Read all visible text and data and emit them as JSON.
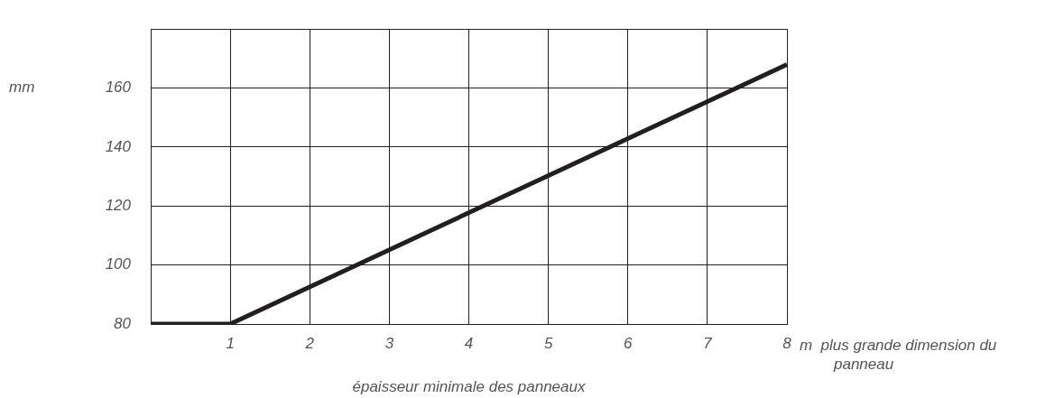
{
  "chart_data": {
    "type": "line",
    "title": "épaisseur minimale des panneaux",
    "xlabel": "m  plus grande dimension du panneau",
    "ylabel": "mm",
    "series": [
      {
        "color": "#231f20",
        "x": [
          0,
          1,
          8
        ],
        "values": [
          80,
          80,
          168
        ]
      }
    ],
    "xlim": [
      0,
      8
    ],
    "xticks": [
      {
        "value": 0,
        "label": null
      },
      1,
      2,
      3,
      4,
      5,
      6,
      7,
      8
    ],
    "ylim": [
      80,
      180
    ],
    "yticks": [
      80,
      100,
      120,
      140,
      160,
      {
        "value": 180,
        "label": null
      }
    ],
    "grid": true,
    "legend": false,
    "marker": "none",
    "line_style": "solid"
  }
}
